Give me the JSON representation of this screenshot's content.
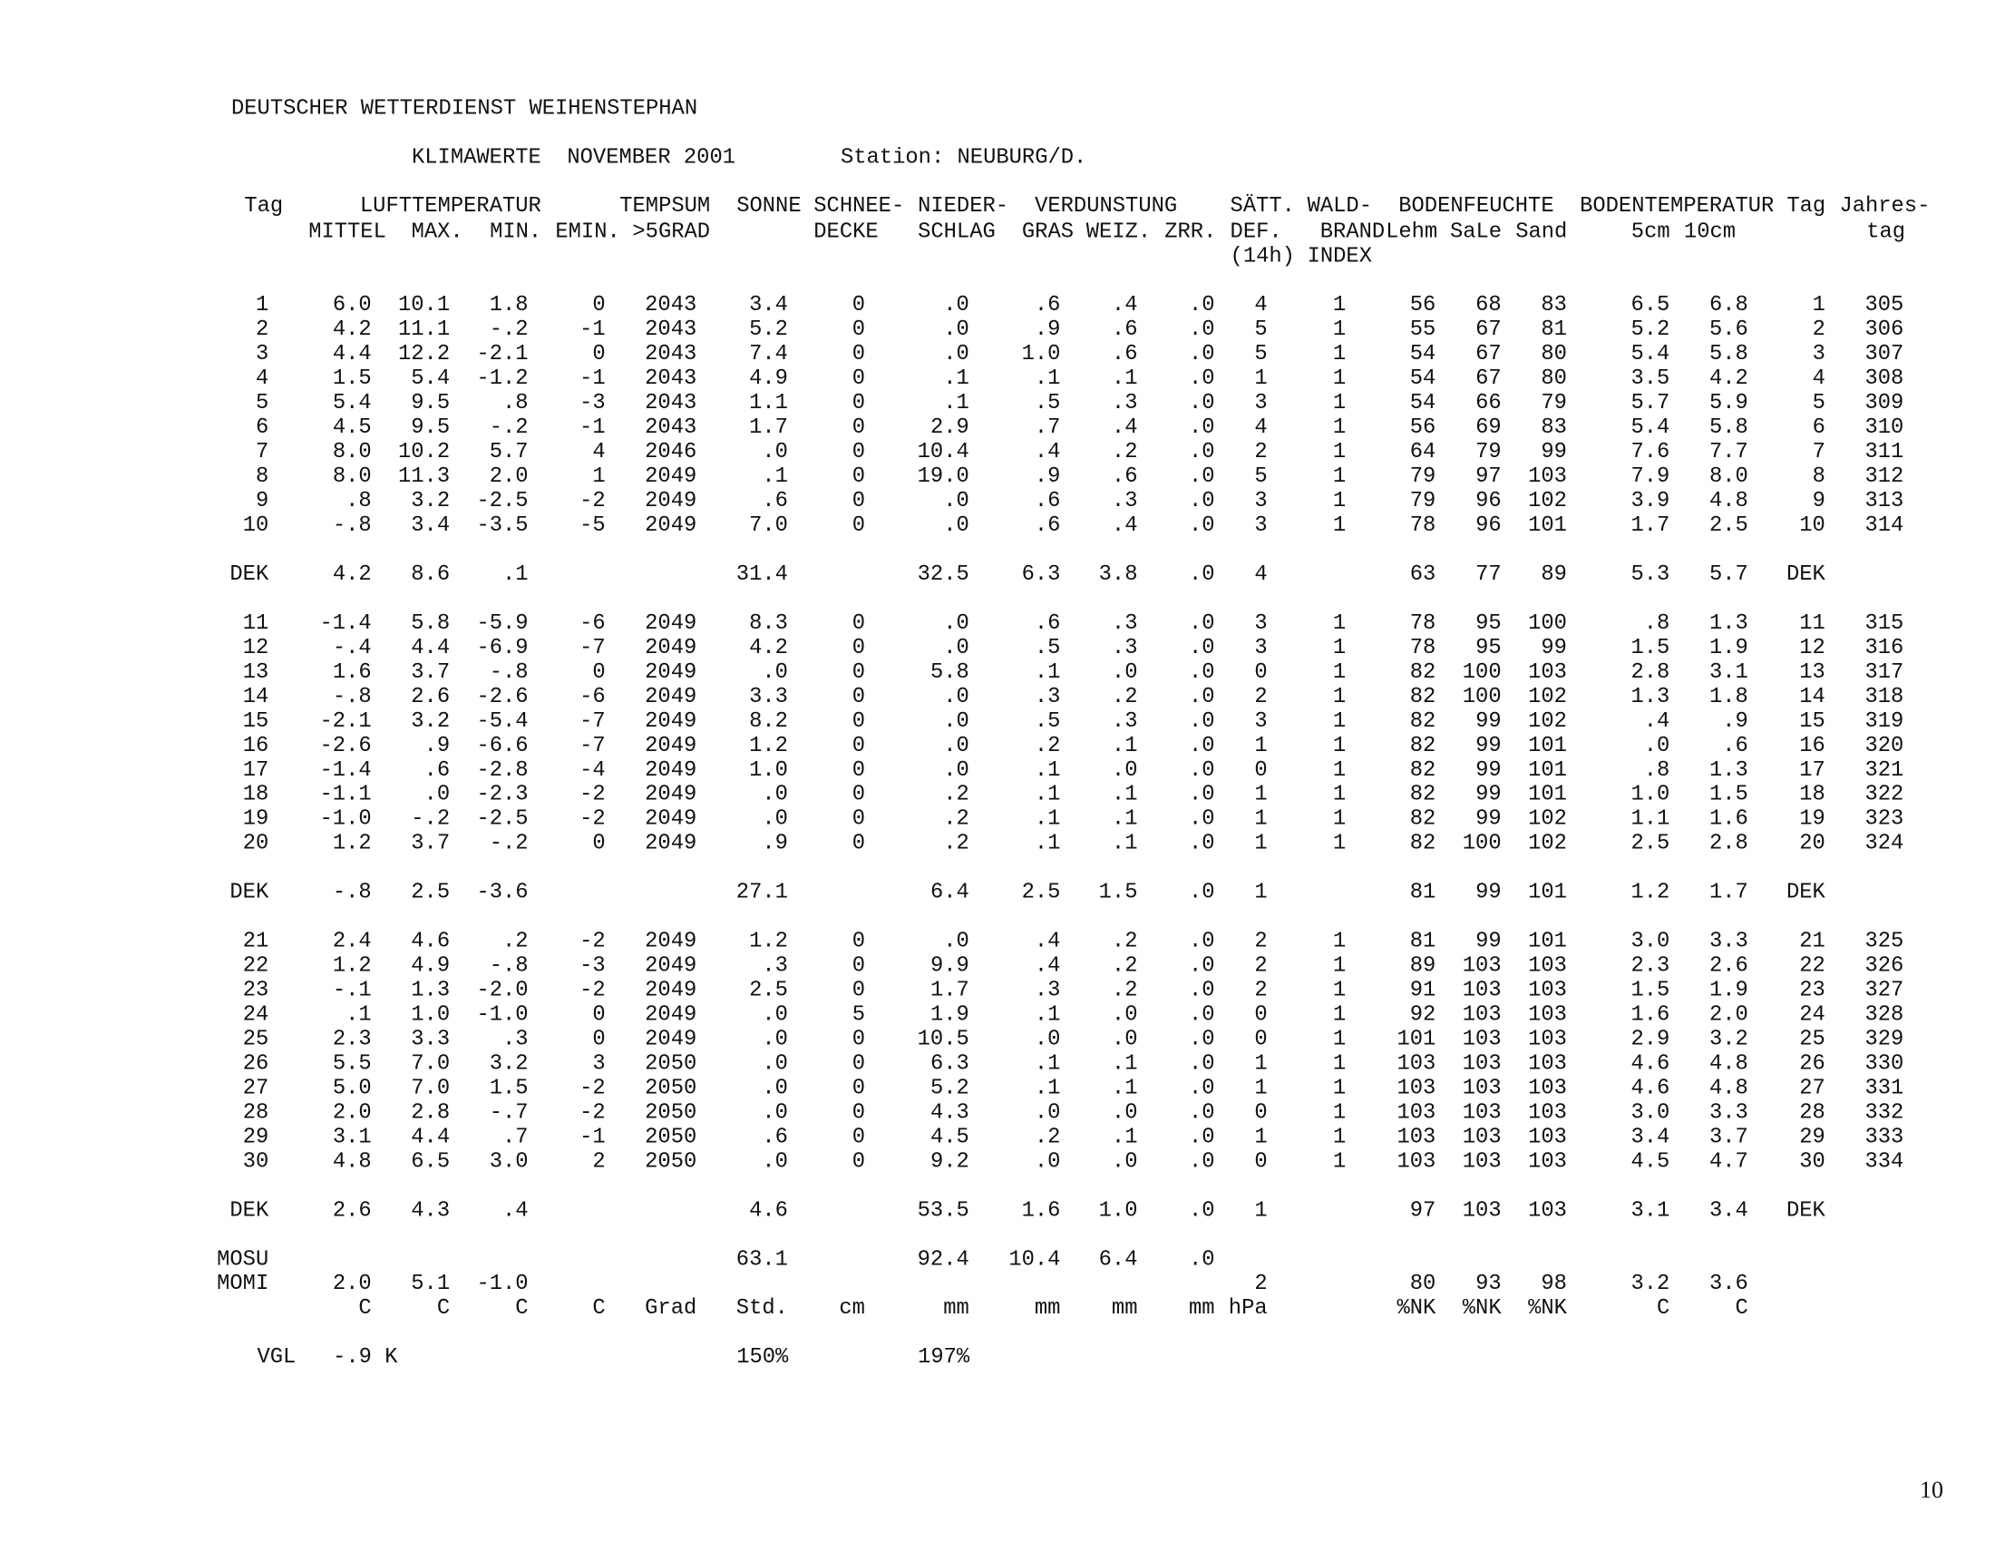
{
  "header": {
    "title": "DEUTSCHER WETTERDIENST WEIHENSTEPHAN",
    "subtitle": "KLIMAWERTE  NOVEMBER 2001",
    "station": "Station: NEUBURG/D."
  },
  "table": {
    "header": [
      [
        "Tag",
        "LUFTTEMPERATUR",
        "TEMPSUM",
        "SONNE",
        "SCHNEE-",
        "NIEDER-",
        "VERDUNSTUNG",
        "SÄTT.",
        "WALD-",
        "BODENFEUCHTE",
        "BODENTEMPERATUR",
        "Tag",
        "Jahres-"
      ],
      [
        "MITTEL",
        "MAX.",
        "MIN.",
        "EMIN.",
        ">5GRAD",
        "DECKE",
        "SCHLAG",
        "GRAS",
        "WEIZ.",
        "ZRR.",
        "DEF.",
        "BRAND",
        "Lehm",
        "SaLe",
        "Sand",
        "5cm",
        "10cm",
        "tag"
      ],
      [
        "(14h)",
        "INDEX"
      ]
    ],
    "rows": [
      [
        "1",
        "6.0",
        "10.1",
        "1.8",
        "0",
        "2043",
        "3.4",
        "0",
        ".0",
        ".6",
        ".4",
        ".0",
        "4",
        "1",
        "56",
        "68",
        "83",
        "6.5",
        "6.8",
        "1",
        "305"
      ],
      [
        "2",
        "4.2",
        "11.1",
        "-.2",
        "-1",
        "2043",
        "5.2",
        "0",
        ".0",
        ".9",
        ".6",
        ".0",
        "5",
        "1",
        "55",
        "67",
        "81",
        "5.2",
        "5.6",
        "2",
        "306"
      ],
      [
        "3",
        "4.4",
        "12.2",
        "-2.1",
        "0",
        "2043",
        "7.4",
        "0",
        ".0",
        "1.0",
        ".6",
        ".0",
        "5",
        "1",
        "54",
        "67",
        "80",
        "5.4",
        "5.8",
        "3",
        "307"
      ],
      [
        "4",
        "1.5",
        "5.4",
        "-1.2",
        "-1",
        "2043",
        "4.9",
        "0",
        ".1",
        ".1",
        ".1",
        ".0",
        "1",
        "1",
        "54",
        "67",
        "80",
        "3.5",
        "4.2",
        "4",
        "308"
      ],
      [
        "5",
        "5.4",
        "9.5",
        ".8",
        "-3",
        "2043",
        "1.1",
        "0",
        ".1",
        ".5",
        ".3",
        ".0",
        "3",
        "1",
        "54",
        "66",
        "79",
        "5.7",
        "5.9",
        "5",
        "309"
      ],
      [
        "6",
        "4.5",
        "9.5",
        "-.2",
        "-1",
        "2043",
        "1.7",
        "0",
        "2.9",
        ".7",
        ".4",
        ".0",
        "4",
        "1",
        "56",
        "69",
        "83",
        "5.4",
        "5.8",
        "6",
        "310"
      ],
      [
        "7",
        "8.0",
        "10.2",
        "5.7",
        "4",
        "2046",
        ".0",
        "0",
        "10.4",
        ".4",
        ".2",
        ".0",
        "2",
        "1",
        "64",
        "79",
        "99",
        "7.6",
        "7.7",
        "7",
        "311"
      ],
      [
        "8",
        "8.0",
        "11.3",
        "2.0",
        "1",
        "2049",
        ".1",
        "0",
        "19.0",
        ".9",
        ".6",
        ".0",
        "5",
        "1",
        "79",
        "97",
        "103",
        "7.9",
        "8.0",
        "8",
        "312"
      ],
      [
        "9",
        ".8",
        "3.2",
        "-2.5",
        "-2",
        "2049",
        ".6",
        "0",
        ".0",
        ".6",
        ".3",
        ".0",
        "3",
        "1",
        "79",
        "96",
        "102",
        "3.9",
        "4.8",
        "9",
        "313"
      ],
      [
        "10",
        "-.8",
        "3.4",
        "-3.5",
        "-5",
        "2049",
        "7.0",
        "0",
        ".0",
        ".6",
        ".4",
        ".0",
        "3",
        "1",
        "78",
        "96",
        "101",
        "1.7",
        "2.5",
        "10",
        "314"
      ],
      [
        "DEK",
        "4.2",
        "8.6",
        ".1",
        null,
        null,
        "31.4",
        null,
        "32.5",
        "6.3",
        "3.8",
        ".0",
        "4",
        null,
        "63",
        "77",
        "89",
        "5.3",
        "5.7",
        "DEK"
      ],
      [
        "11",
        "-1.4",
        "5.8",
        "-5.9",
        "-6",
        "2049",
        "8.3",
        "0",
        ".0",
        ".6",
        ".3",
        ".0",
        "3",
        "1",
        "78",
        "95",
        "100",
        ".8",
        "1.3",
        "11",
        "315"
      ],
      [
        "12",
        "-.4",
        "4.4",
        "-6.9",
        "-7",
        "2049",
        "4.2",
        "0",
        ".0",
        ".5",
        ".3",
        ".0",
        "3",
        "1",
        "78",
        "95",
        "99",
        "1.5",
        "1.9",
        "12",
        "316"
      ],
      [
        "13",
        "1.6",
        "3.7",
        "-.8",
        "0",
        "2049",
        ".0",
        "0",
        "5.8",
        ".1",
        ".0",
        ".0",
        "0",
        "1",
        "82",
        "100",
        "103",
        "2.8",
        "3.1",
        "13",
        "317"
      ],
      [
        "14",
        "-.8",
        "2.6",
        "-2.6",
        "-6",
        "2049",
        "3.3",
        "0",
        ".0",
        ".3",
        ".2",
        ".0",
        "2",
        "1",
        "82",
        "100",
        "102",
        "1.3",
        "1.8",
        "14",
        "318"
      ],
      [
        "15",
        "-2.1",
        "3.2",
        "-5.4",
        "-7",
        "2049",
        "8.2",
        "0",
        ".0",
        ".5",
        ".3",
        ".0",
        "3",
        "1",
        "82",
        "99",
        "102",
        ".4",
        ".9",
        "15",
        "319"
      ],
      [
        "16",
        "-2.6",
        ".9",
        "-6.6",
        "-7",
        "2049",
        "1.2",
        "0",
        ".0",
        ".2",
        ".1",
        ".0",
        "1",
        "1",
        "82",
        "99",
        "101",
        ".0",
        ".6",
        "16",
        "320"
      ],
      [
        "17",
        "-1.4",
        ".6",
        "-2.8",
        "-4",
        "2049",
        "1.0",
        "0",
        ".0",
        ".1",
        ".0",
        ".0",
        "0",
        "1",
        "82",
        "99",
        "101",
        ".8",
        "1.3",
        "17",
        "321"
      ],
      [
        "18",
        "-1.1",
        ".0",
        "-2.3",
        "-2",
        "2049",
        ".0",
        "0",
        ".2",
        ".1",
        ".1",
        ".0",
        "1",
        "1",
        "82",
        "99",
        "101",
        "1.0",
        "1.5",
        "18",
        "322"
      ],
      [
        "19",
        "-1.0",
        "-.2",
        "-2.5",
        "-2",
        "2049",
        ".0",
        "0",
        ".2",
        ".1",
        ".1",
        ".0",
        "1",
        "1",
        "82",
        "99",
        "102",
        "1.1",
        "1.6",
        "19",
        "323"
      ],
      [
        "20",
        "1.2",
        "3.7",
        "-.2",
        "0",
        "2049",
        ".9",
        "0",
        ".2",
        ".1",
        ".1",
        ".0",
        "1",
        "1",
        "82",
        "100",
        "102",
        "2.5",
        "2.8",
        "20",
        "324"
      ],
      [
        "DEK",
        "-.8",
        "2.5",
        "-3.6",
        null,
        null,
        "27.1",
        null,
        "6.4",
        "2.5",
        "1.5",
        ".0",
        "1",
        null,
        "81",
        "99",
        "101",
        "1.2",
        "1.7",
        "DEK"
      ],
      [
        "21",
        "2.4",
        "4.6",
        ".2",
        "-2",
        "2049",
        "1.2",
        "0",
        ".0",
        ".4",
        ".2",
        ".0",
        "2",
        "1",
        "81",
        "99",
        "101",
        "3.0",
        "3.3",
        "21",
        "325"
      ],
      [
        "22",
        "1.2",
        "4.9",
        "-.8",
        "-3",
        "2049",
        ".3",
        "0",
        "9.9",
        ".4",
        ".2",
        ".0",
        "2",
        "1",
        "89",
        "103",
        "103",
        "2.3",
        "2.6",
        "22",
        "326"
      ],
      [
        "23",
        "-.1",
        "1.3",
        "-2.0",
        "-2",
        "2049",
        "2.5",
        "0",
        "1.7",
        ".3",
        ".2",
        ".0",
        "2",
        "1",
        "91",
        "103",
        "103",
        "1.5",
        "1.9",
        "23",
        "327"
      ],
      [
        "24",
        ".1",
        "1.0",
        "-1.0",
        "0",
        "2049",
        ".0",
        "5",
        "1.9",
        ".1",
        ".0",
        ".0",
        "0",
        "1",
        "92",
        "103",
        "103",
        "1.6",
        "2.0",
        "24",
        "328"
      ],
      [
        "25",
        "2.3",
        "3.3",
        ".3",
        "0",
        "2049",
        ".0",
        "0",
        "10.5",
        ".0",
        ".0",
        ".0",
        "0",
        "1",
        "101",
        "103",
        "103",
        "2.9",
        "3.2",
        "25",
        "329"
      ],
      [
        "26",
        "5.5",
        "7.0",
        "3.2",
        "3",
        "2050",
        ".0",
        "0",
        "6.3",
        ".1",
        ".1",
        ".0",
        "1",
        "1",
        "103",
        "103",
        "103",
        "4.6",
        "4.8",
        "26",
        "330"
      ],
      [
        "27",
        "5.0",
        "7.0",
        "1.5",
        "-2",
        "2050",
        ".0",
        "0",
        "5.2",
        ".1",
        ".1",
        ".0",
        "1",
        "1",
        "103",
        "103",
        "103",
        "4.6",
        "4.8",
        "27",
        "331"
      ],
      [
        "28",
        "2.0",
        "2.8",
        "-.7",
        "-2",
        "2050",
        ".0",
        "0",
        "4.3",
        ".0",
        ".0",
        ".0",
        "0",
        "1",
        "103",
        "103",
        "103",
        "3.0",
        "3.3",
        "28",
        "332"
      ],
      [
        "29",
        "3.1",
        "4.4",
        ".7",
        "-1",
        "2050",
        ".6",
        "0",
        "4.5",
        ".2",
        ".1",
        ".0",
        "1",
        "1",
        "103",
        "103",
        "103",
        "3.4",
        "3.7",
        "29",
        "333"
      ],
      [
        "30",
        "4.8",
        "6.5",
        "3.0",
        "2",
        "2050",
        ".0",
        "0",
        "9.2",
        ".0",
        ".0",
        ".0",
        "0",
        "1",
        "103",
        "103",
        "103",
        "4.5",
        "4.7",
        "30",
        "334"
      ],
      [
        "DEK",
        "2.6",
        "4.3",
        ".4",
        null,
        null,
        "4.6",
        null,
        "53.5",
        "1.6",
        "1.0",
        ".0",
        "1",
        null,
        "97",
        "103",
        "103",
        "3.1",
        "3.4",
        "DEK"
      ],
      [
        "MOSU",
        null,
        null,
        null,
        null,
        null,
        "63.1",
        null,
        "92.4",
        "10.4",
        "6.4",
        ".0"
      ],
      [
        "MOMI",
        "2.0",
        "5.1",
        "-1.0",
        null,
        null,
        null,
        null,
        null,
        null,
        null,
        null,
        "2",
        null,
        "80",
        "93",
        "98",
        "3.2",
        "3.6"
      ],
      [
        null,
        "C",
        "C",
        "C",
        "C",
        "Grad",
        "Std.",
        "cm",
        "mm",
        "mm",
        "mm",
        "mm",
        "hPa",
        null,
        "%NK",
        "%NK",
        "%NK",
        "C",
        "C"
      ]
    ],
    "comparison": [
      "VGL",
      "-.9 K",
      "150%",
      "197%"
    ]
  },
  "page_number": "10"
}
